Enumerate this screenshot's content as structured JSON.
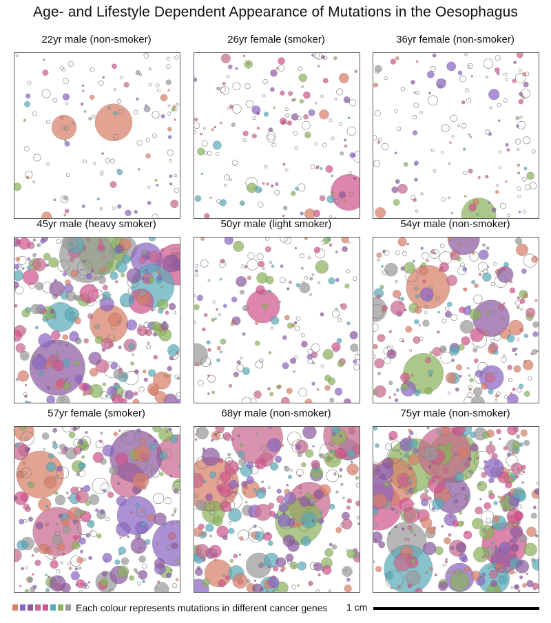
{
  "title": "Age- and Lifestyle Dependent Appearance of Mutations in the Oesophagus",
  "panels": [
    {
      "label": "22yr male (non-smoker)",
      "density": 0.12,
      "big": [
        [
          0.6,
          0.42,
          0.9
        ],
        [
          0.3,
          0.45,
          0.6
        ]
      ],
      "seed": 11
    },
    {
      "label": "26yr female (smoker)",
      "density": 0.3,
      "big": [],
      "seed": 23
    },
    {
      "label": "36yr female (non-smoker)",
      "density": 0.2,
      "big": [],
      "seed": 37
    },
    {
      "label": "45yr male (heavy smoker)",
      "density": 0.85,
      "big": [],
      "seed": 41
    },
    {
      "label": "50yr male (light smoker)",
      "density": 0.35,
      "big": [],
      "seed": 53
    },
    {
      "label": "54yr male (non-smoker)",
      "density": 0.65,
      "big": [],
      "seed": 67
    },
    {
      "label": "57yr female (smoker)",
      "density": 0.8,
      "big": [],
      "seed": 71
    },
    {
      "label": "68yr male (non-smoker)",
      "density": 0.85,
      "big": [],
      "seed": 89
    },
    {
      "label": "75yr male (non-smoker)",
      "density": 0.95,
      "big": [],
      "seed": 97
    }
  ],
  "legend": {
    "text": "Each colour represents mutations in different cancer genes",
    "colors": [
      "#d77f69",
      "#8a67c2",
      "#8e5aa0",
      "#c76a8e",
      "#d0568c",
      "#5aaab8",
      "#8bb25c",
      "#9a9a9a"
    ]
  },
  "scale_label": "1 cm"
}
